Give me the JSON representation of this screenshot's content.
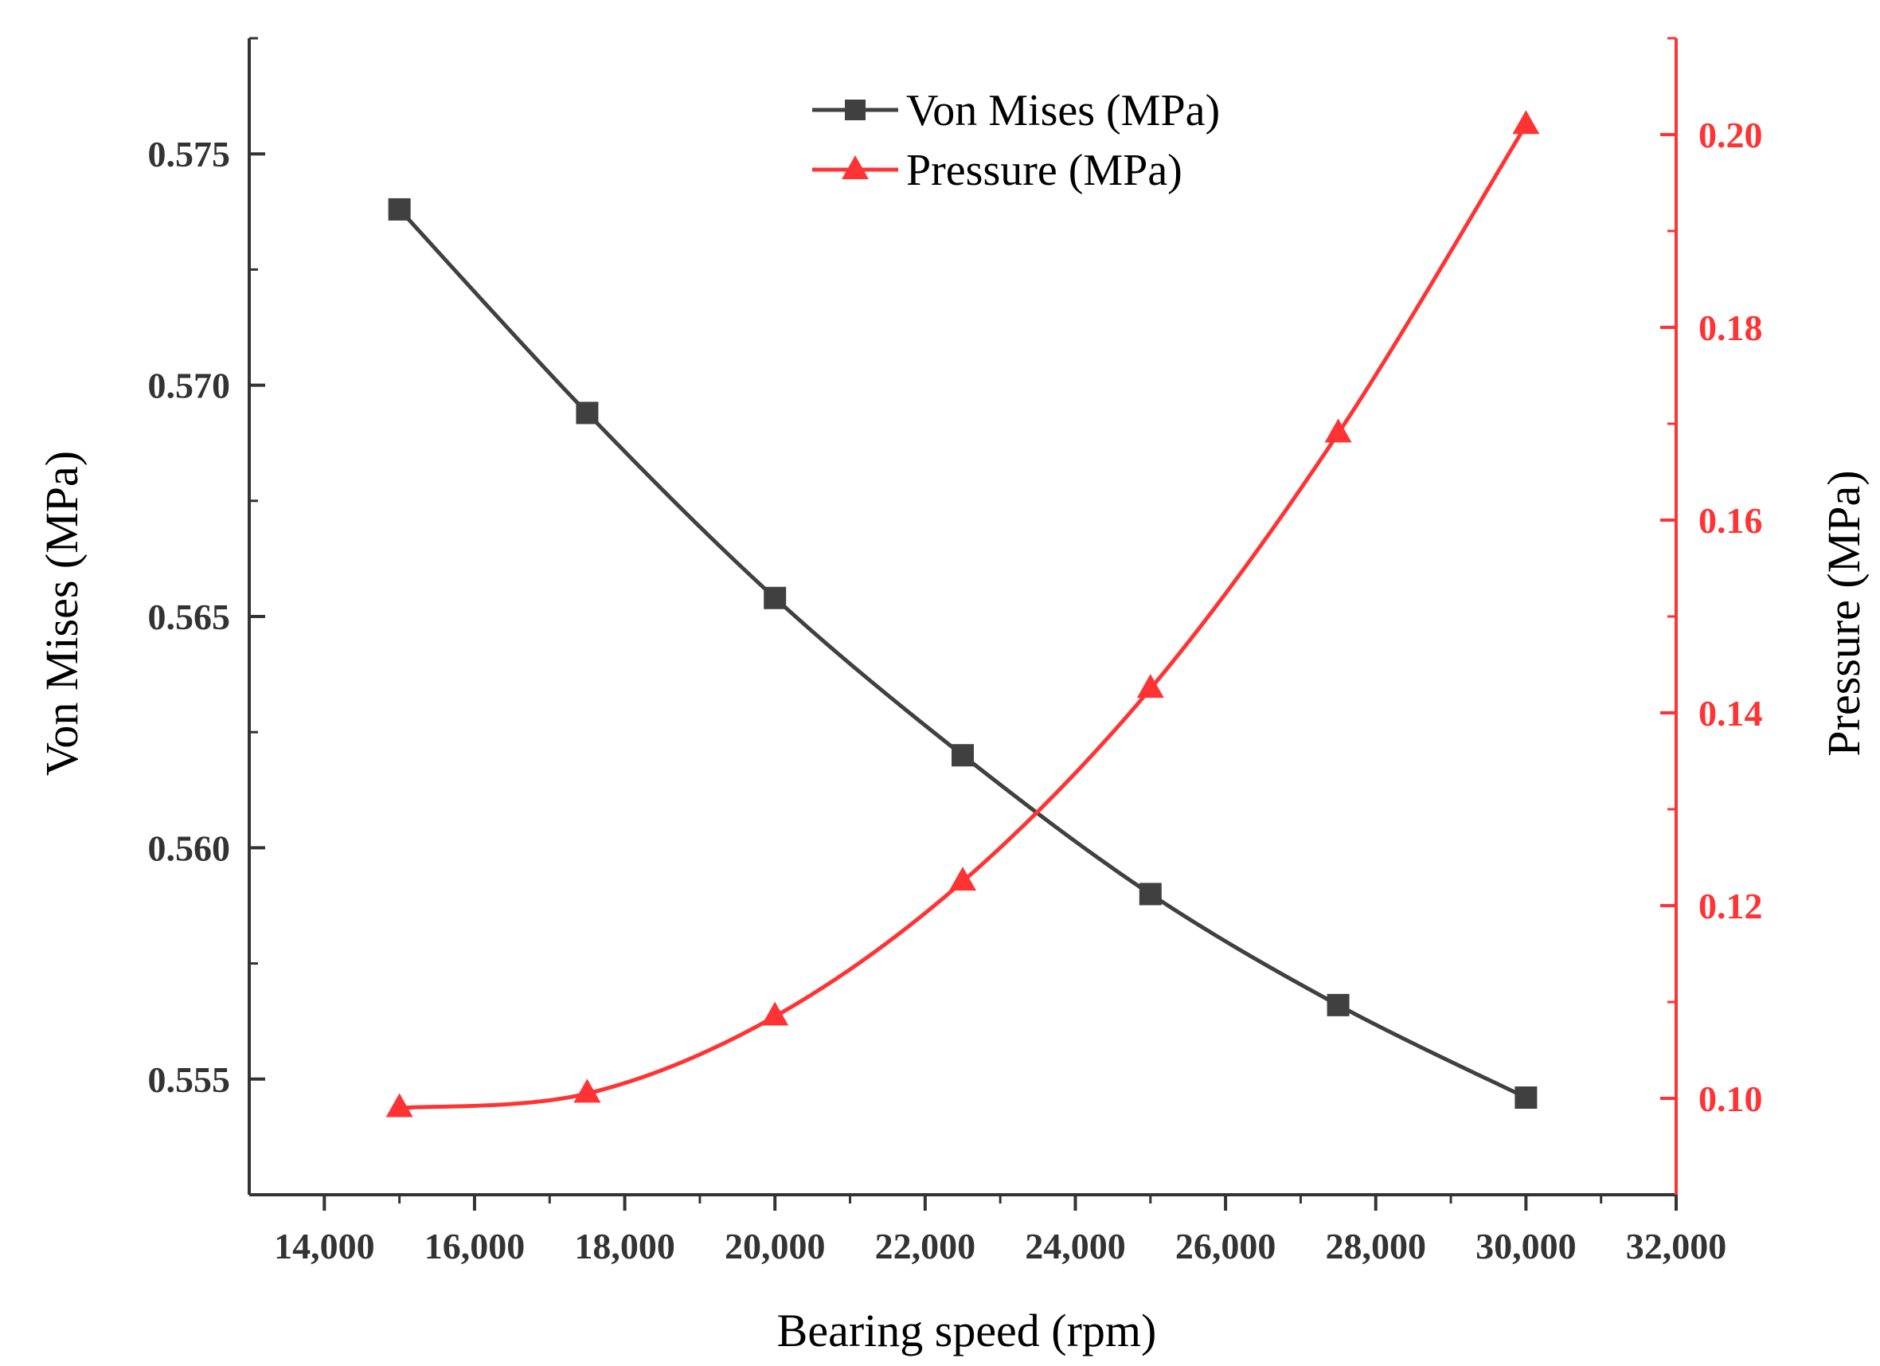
{
  "chart_data": {
    "type": "line",
    "title": "",
    "xlabel": "Bearing speed (rpm)",
    "ylabel_left": "Von Mises (MPa)",
    "ylabel_right": "Pressure (MPa)",
    "xlim": [
      13000,
      32000
    ],
    "ylim_left": [
      0.5525,
      0.5775
    ],
    "ylim_right": [
      0.09,
      0.21
    ],
    "x_ticks": [
      14000,
      16000,
      18000,
      20000,
      22000,
      24000,
      26000,
      28000,
      30000,
      32000
    ],
    "x_tick_labels": [
      "14,000",
      "16,000",
      "18,000",
      "20,000",
      "22,000",
      "24,000",
      "26,000",
      "28,000",
      "30,000",
      "32,000"
    ],
    "y_left_ticks": [
      0.555,
      0.56,
      0.565,
      0.57,
      0.575
    ],
    "y_left_tick_labels": [
      "0.555",
      "0.560",
      "0.565",
      "0.570",
      "0.575"
    ],
    "y_right_ticks": [
      0.1,
      0.12,
      0.14,
      0.16,
      0.18,
      0.2
    ],
    "y_right_tick_labels": [
      "0.10",
      "0.12",
      "0.14",
      "0.16",
      "0.18",
      "0.20"
    ],
    "grid": false,
    "legend_position": "top-center",
    "x": [
      15000,
      17500,
      20000,
      22500,
      25000,
      27500,
      30000
    ],
    "series": [
      {
        "name": "Von Mises (MPa)",
        "axis": "left",
        "marker": "square",
        "color": "#404040",
        "values": [
          0.5738,
          0.5694,
          0.5654,
          0.562,
          0.559,
          0.5566,
          0.5546
        ]
      },
      {
        "name": "Pressure (MPa)",
        "axis": "right",
        "marker": "triangle",
        "color": "#ff3333",
        "values": [
          0.099,
          0.1005,
          0.1085,
          0.1225,
          0.1425,
          0.169,
          0.201
        ]
      }
    ],
    "axis_colors": {
      "left": "#333333",
      "right": "#ff3333",
      "bottom": "#333333"
    }
  }
}
